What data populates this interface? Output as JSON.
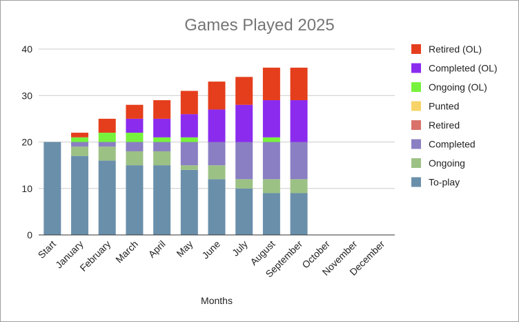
{
  "chart_data": {
    "type": "bar",
    "stacked": true,
    "title": "Games Played 2025",
    "xlabel": "Months",
    "ylabel": "",
    "ylim": [
      0,
      40
    ],
    "yticks": [
      0,
      10,
      20,
      30,
      40
    ],
    "grid": true,
    "legend_position": "right",
    "categories": [
      "Start",
      "January",
      "February",
      "March",
      "April",
      "May",
      "June",
      "July",
      "August",
      "September",
      "October",
      "November",
      "December"
    ],
    "series": [
      {
        "name": "To-play",
        "color": "#6a8fab",
        "values": [
          20,
          17,
          16,
          15,
          15,
          14,
          12,
          10,
          9,
          9,
          0,
          0,
          0
        ]
      },
      {
        "name": "Ongoing",
        "color": "#9cc185",
        "values": [
          0,
          2,
          3,
          3,
          3,
          1,
          3,
          2,
          3,
          3,
          0,
          0,
          0
        ]
      },
      {
        "name": "Completed",
        "color": "#8a7fc3",
        "values": [
          0,
          1,
          1,
          2,
          2,
          5,
          5,
          8,
          8,
          8,
          0,
          0,
          0
        ]
      },
      {
        "name": "Retired",
        "color": "#d9726a",
        "values": [
          0,
          0,
          0,
          0,
          0,
          0,
          0,
          0,
          0,
          0,
          0,
          0,
          0
        ]
      },
      {
        "name": "Punted",
        "color": "#f7d368",
        "values": [
          0,
          0,
          0,
          0,
          0,
          0,
          0,
          0,
          0,
          0,
          0,
          0,
          0
        ]
      },
      {
        "name": "Ongoing (OL)",
        "color": "#77f23c",
        "values": [
          0,
          1,
          2,
          2,
          1,
          1,
          0,
          0,
          1,
          0,
          0,
          0,
          0
        ]
      },
      {
        "name": "Completed (OL)",
        "color": "#8a2bee",
        "values": [
          0,
          0,
          0,
          3,
          4,
          5,
          7,
          8,
          8,
          9,
          0,
          0,
          0
        ]
      },
      {
        "name": "Retired (OL)",
        "color": "#e53e1c",
        "values": [
          0,
          1,
          3,
          3,
          4,
          5,
          6,
          6,
          7,
          7,
          0,
          0,
          0
        ]
      }
    ]
  }
}
